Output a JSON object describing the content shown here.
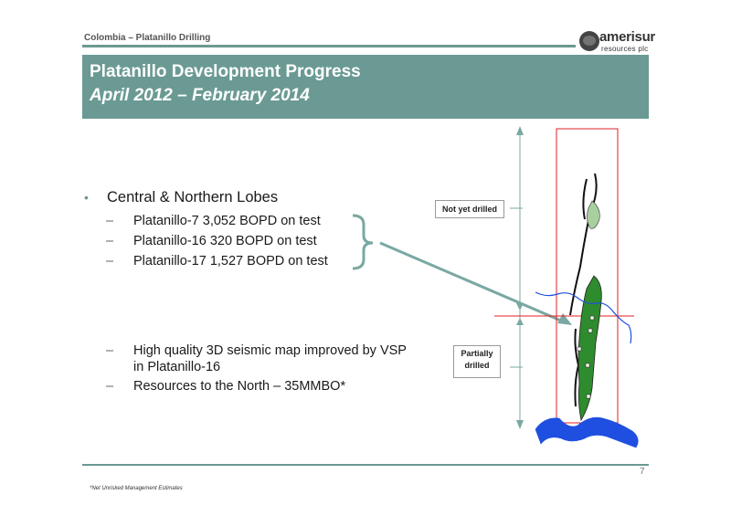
{
  "header": {
    "section_label": "Colombia – Platanillo Drilling",
    "logo_name": "amerisur",
    "logo_sub": "resources plc"
  },
  "title": {
    "line1": "Platanillo Development Progress",
    "line2": "April 2012 – February 2014"
  },
  "content": {
    "bullet_main": "Central & Northern Lobes",
    "wells": [
      "Platanillo-7 3,052 BOPD on test",
      "Platanillo-16 320 BOPD on test",
      "Platanillo-17 1,527 BOPD on test"
    ],
    "notes": [
      "High quality 3D seismic map improved by VSP in Platanillo-16",
      "Resources to the North – 35MMBO*"
    ]
  },
  "map": {
    "callout_not_drilled": "Not yet drilled",
    "callout_partially_line1": "Partially",
    "callout_partially_line2": "drilled",
    "colors": {
      "accent": "#6a9a93",
      "field_dark": "#2e8b2e",
      "field_light": "#a8cfa0",
      "river": "#1f4fe0",
      "frame": "#e02020",
      "arrow": "#7aa8a2"
    }
  },
  "footer": {
    "footnote": "*Net Unrisked Management Estimates",
    "page_number": "7"
  }
}
